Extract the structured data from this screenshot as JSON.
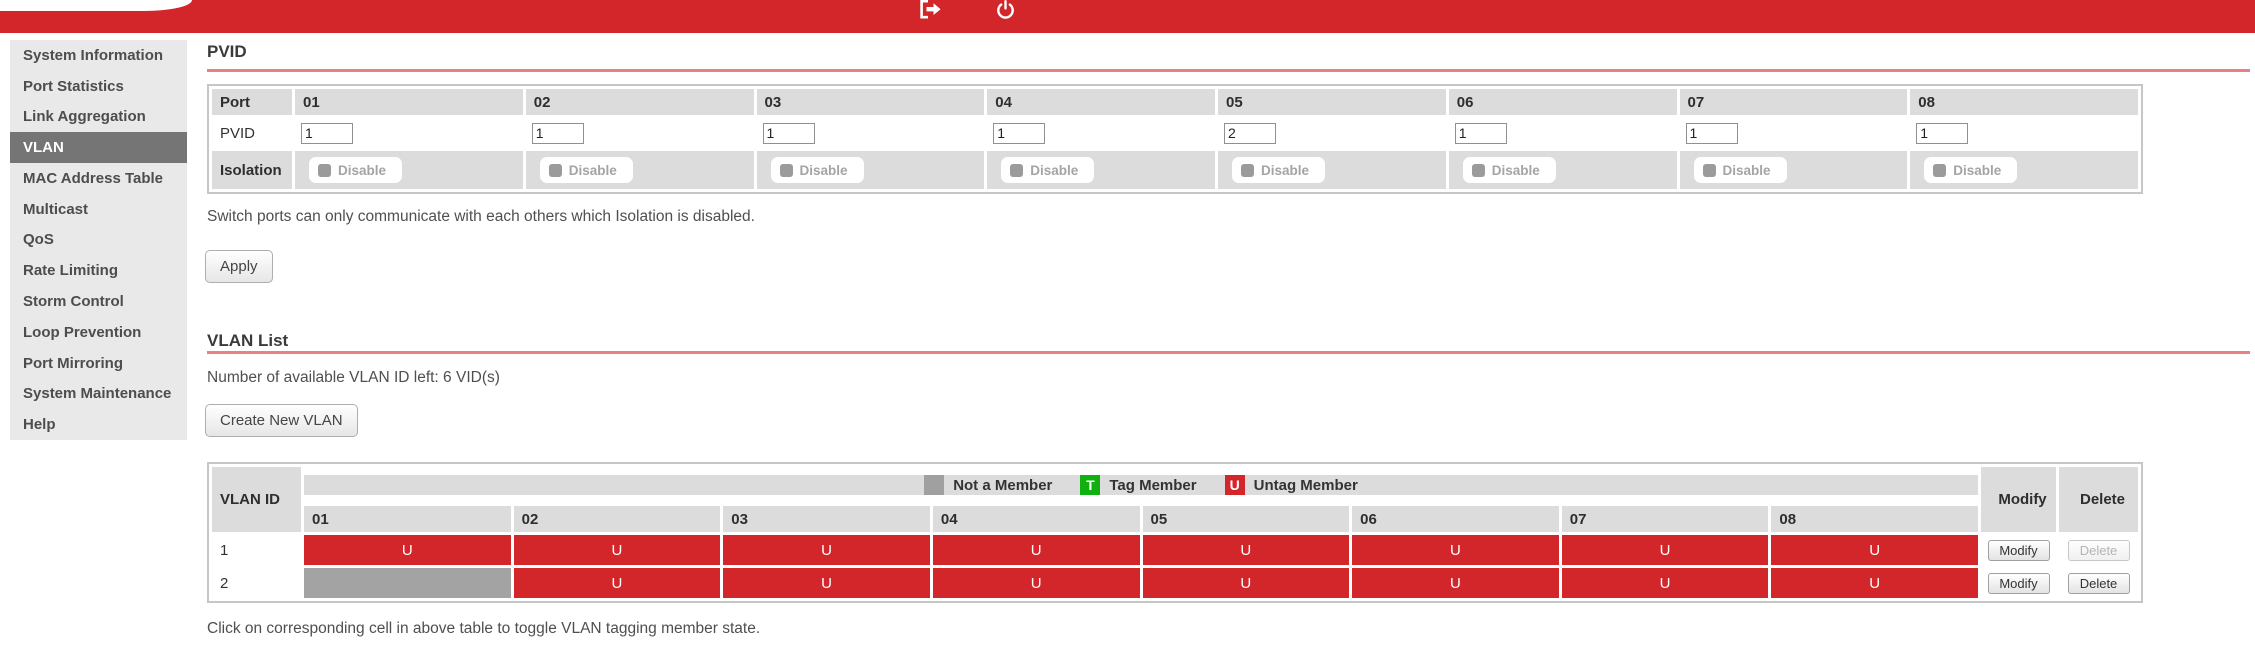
{
  "topbar": {
    "logout_icon": "logout-icon",
    "power_icon": "power-icon"
  },
  "sidebar": {
    "items": [
      {
        "label": "System Information",
        "selected": false
      },
      {
        "label": "Port Statistics",
        "selected": false
      },
      {
        "label": "Link Aggregation",
        "selected": false
      },
      {
        "label": "VLAN",
        "selected": true
      },
      {
        "label": "MAC Address Table",
        "selected": false
      },
      {
        "label": "Multicast",
        "selected": false
      },
      {
        "label": "QoS",
        "selected": false
      },
      {
        "label": "Rate Limiting",
        "selected": false
      },
      {
        "label": "Storm Control",
        "selected": false
      },
      {
        "label": "Loop Prevention",
        "selected": false
      },
      {
        "label": "Port Mirroring",
        "selected": false
      },
      {
        "label": "System Maintenance",
        "selected": false
      },
      {
        "label": "Help",
        "selected": false
      }
    ]
  },
  "pvid_section": {
    "title": "PVID",
    "table": {
      "port_header_label": "Port",
      "ports": [
        "01",
        "02",
        "03",
        "04",
        "05",
        "06",
        "07",
        "08"
      ],
      "pvid_row_label": "PVID",
      "pvid_values": [
        "1",
        "1",
        "1",
        "1",
        "2",
        "1",
        "1",
        "1"
      ],
      "isolation_row_label": "Isolation",
      "isolation_values": [
        "Disable",
        "Disable",
        "Disable",
        "Disable",
        "Disable",
        "Disable",
        "Disable",
        "Disable"
      ]
    },
    "note": "Switch ports can only communicate with each others which Isolation is disabled.",
    "apply_label": "Apply"
  },
  "vlan_section": {
    "title": "VLAN List",
    "available_note": "Number of available VLAN ID left: 6 VID(s)",
    "create_button_label": "Create New VLAN",
    "legend": [
      {
        "swatch_color": "#a0a0a0",
        "letter": "",
        "label": "Not a Member"
      },
      {
        "swatch_color": "#0fb00f",
        "letter": "T",
        "label": "Tag Member"
      },
      {
        "swatch_color": "#d2262b",
        "letter": "U",
        "label": "Untag Member"
      }
    ],
    "table": {
      "id_header": "VLAN ID",
      "ports": [
        "01",
        "02",
        "03",
        "04",
        "05",
        "06",
        "07",
        "08"
      ],
      "modify_header": "Modify",
      "delete_header": "Delete",
      "rows": [
        {
          "id": "1",
          "members": [
            "U",
            "U",
            "U",
            "U",
            "U",
            "U",
            "U",
            "U"
          ],
          "modify_label": "Modify",
          "delete_label": "Delete",
          "delete_enabled": false
        },
        {
          "id": "2",
          "members": [
            "",
            "U",
            "U",
            "U",
            "U",
            "U",
            "U",
            "U"
          ],
          "modify_label": "Modify",
          "delete_label": "Delete",
          "delete_enabled": true
        }
      ]
    },
    "footer_note": "Click on corresponding cell in above table to toggle VLAN tagging member state."
  },
  "colors": {
    "topbar_red": "#d2262b",
    "heading_rule_pink": "#e8827f",
    "header_cell_gray": "#dcdcdc",
    "selected_nav_gray": "#757575",
    "not_member_gray": "#a3a3a3",
    "untag_red": "#d2262b",
    "tag_green": "#0fb00f"
  }
}
